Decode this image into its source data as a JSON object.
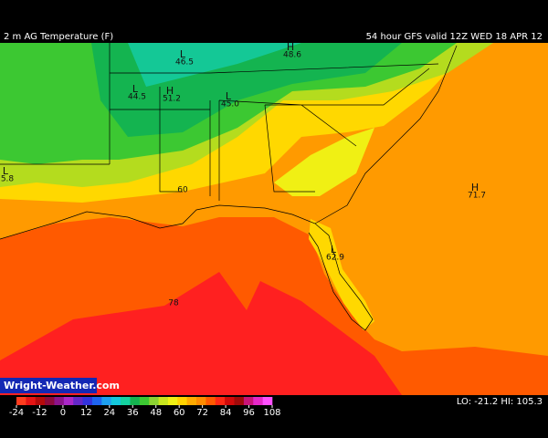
{
  "header": {
    "title": "2 m AG Temperature (F)",
    "run": "54 hour GFS valid 12Z WED 18 APR 12"
  },
  "watermark": "Wright-Weather.com",
  "extremes": "LO: -21.2  HI: 105.3",
  "map_labels": [
    {
      "symbol": "L",
      "value": "46.5"
    },
    {
      "symbol": "H",
      "value": "48.6"
    },
    {
      "symbol": "L",
      "value": "44.5"
    },
    {
      "symbol": "H",
      "value": "51.2"
    },
    {
      "symbol": "L",
      "value": "45.0"
    },
    {
      "symbol": "L",
      "value": "5.8"
    },
    {
      "value": "60"
    },
    {
      "value": "78"
    },
    {
      "symbol": "L",
      "value": "62.9"
    },
    {
      "symbol": "H",
      "value": "71.7"
    }
  ],
  "colorbar": {
    "ticks": [
      -24,
      -12,
      0,
      12,
      24,
      36,
      48,
      60,
      72,
      84,
      96,
      108
    ],
    "colors": [
      "#ff3c1e",
      "#e61414",
      "#b40a0a",
      "#8c0a3c",
      "#8c148c",
      "#aa28c8",
      "#6428c8",
      "#3232dc",
      "#1e64f0",
      "#1ea0f0",
      "#14c8dc",
      "#14d2a0",
      "#14b450",
      "#3cc832",
      "#8cd232",
      "#c8e61e",
      "#f0f014",
      "#ffd200",
      "#ffaa00",
      "#ff8c00",
      "#ff5a00",
      "#ff2814",
      "#d20a0a",
      "#a00a0a",
      "#c81478",
      "#e628c8",
      "#ff50ff"
    ]
  }
}
